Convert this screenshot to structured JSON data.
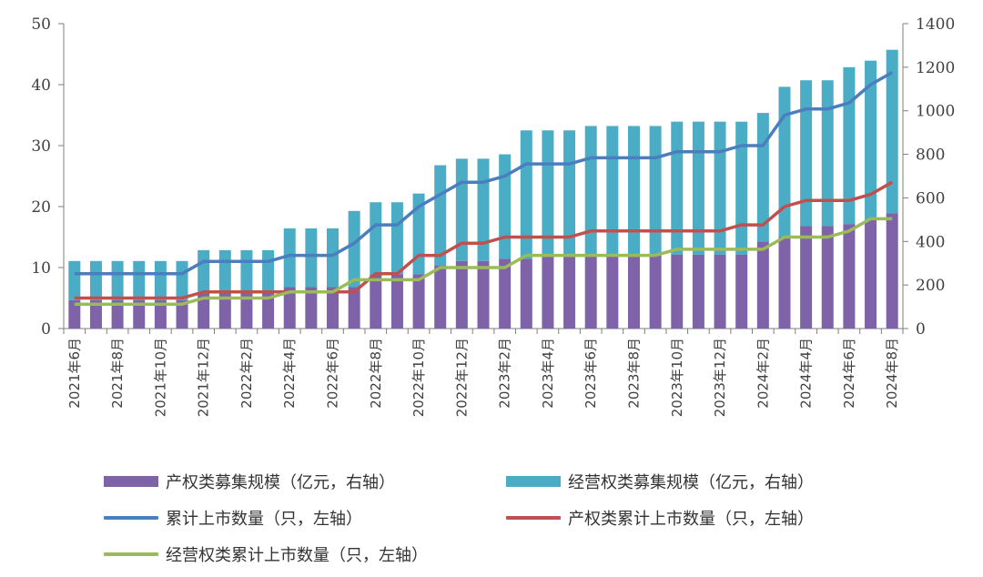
{
  "chart_data": {
    "type": "bar+line",
    "x": [
      "2021年6月",
      "2021年7月",
      "2021年8月",
      "2021年9月",
      "2021年10月",
      "2021年11月",
      "2021年12月",
      "2022年1月",
      "2022年2月",
      "2022年3月",
      "2022年4月",
      "2022年5月",
      "2022年6月",
      "2022年7月",
      "2022年8月",
      "2022年9月",
      "2022年10月",
      "2022年11月",
      "2022年12月",
      "2023年1月",
      "2023年2月",
      "2023年3月",
      "2023年4月",
      "2023年5月",
      "2023年6月",
      "2023年7月",
      "2023年8月",
      "2023年9月",
      "2023年10月",
      "2023年11月",
      "2023年12月",
      "2024年1月",
      "2024年2月",
      "2024年3月",
      "2024年4月",
      "2024年5月",
      "2024年6月",
      "2024年7月",
      "2024年8月"
    ],
    "x_tick_labels": [
      "2021年6月",
      "2021年8月",
      "2021年10月",
      "2021年12月",
      "2022年2月",
      "2022年4月",
      "2022年6月",
      "2022年8月",
      "2022年10月",
      "2022年12月",
      "2023年2月",
      "2023年4月",
      "2023年6月",
      "2023年8月",
      "2023年10月",
      "2023年12月",
      "2024年2月",
      "2024年4月",
      "2024年6月",
      "2024年8月"
    ],
    "left_axis": {
      "ylim": [
        0,
        50
      ],
      "ticks": [
        0,
        10,
        20,
        30,
        40,
        50
      ]
    },
    "right_axis": {
      "ylim": [
        0,
        1400
      ],
      "ticks": [
        0,
        200,
        400,
        600,
        800,
        1000,
        1200,
        1400
      ]
    },
    "bars_stacked": true,
    "series": [
      {
        "name": "产权类募集规模（亿元，右轴）",
        "kind": "bar",
        "axis": "right",
        "color": "#7e63a8",
        "values": [
          130,
          130,
          130,
          130,
          130,
          130,
          170,
          170,
          170,
          170,
          190,
          190,
          190,
          190,
          250,
          250,
          250,
          290,
          310,
          310,
          320,
          320,
          330,
          330,
          340,
          340,
          340,
          340,
          340,
          340,
          340,
          340,
          400,
          420,
          470,
          470,
          480,
          500,
          530
        ]
      },
      {
        "name": "经营权类募集规模（亿元，右轴）",
        "kind": "bar",
        "axis": "right",
        "color": "#4bacc6",
        "values": [
          180,
          180,
          180,
          180,
          180,
          180,
          190,
          190,
          190,
          190,
          270,
          270,
          270,
          350,
          330,
          330,
          370,
          460,
          470,
          470,
          480,
          590,
          580,
          580,
          590,
          590,
          590,
          590,
          610,
          610,
          610,
          610,
          590,
          690,
          670,
          670,
          720,
          730,
          750
        ]
      },
      {
        "name": "累计上市数量（只，左轴）",
        "kind": "line",
        "axis": "left",
        "color": "#4a7ebf",
        "values": [
          9,
          9,
          9,
          9,
          9,
          9,
          11,
          11,
          11,
          11,
          12,
          12,
          12,
          14,
          17,
          17,
          20,
          22,
          24,
          24,
          25,
          27,
          27,
          27,
          28,
          28,
          28,
          28,
          29,
          29,
          29,
          30,
          30,
          35,
          36,
          36,
          37,
          40,
          42
        ]
      },
      {
        "name": "产权类累计上市数量（只，左轴）",
        "kind": "line",
        "axis": "left",
        "color": "#c0504d",
        "values": [
          5,
          5,
          5,
          5,
          5,
          5,
          6,
          6,
          6,
          6,
          6,
          6,
          6,
          6,
          9,
          9,
          12,
          12,
          14,
          14,
          15,
          15,
          15,
          15,
          16,
          16,
          16,
          16,
          16,
          16,
          16,
          17,
          17,
          20,
          21,
          21,
          21,
          22,
          24
        ]
      },
      {
        "name": "经营权类累计上市数量（只，左轴）",
        "kind": "line",
        "axis": "left",
        "color": "#9bbb59",
        "values": [
          4,
          4,
          4,
          4,
          4,
          4,
          5,
          5,
          5,
          5,
          6,
          6,
          6,
          8,
          8,
          8,
          8,
          10,
          10,
          10,
          10,
          12,
          12,
          12,
          12,
          12,
          12,
          12,
          13,
          13,
          13,
          13,
          13,
          15,
          15,
          15,
          16,
          18,
          18
        ]
      }
    ]
  }
}
